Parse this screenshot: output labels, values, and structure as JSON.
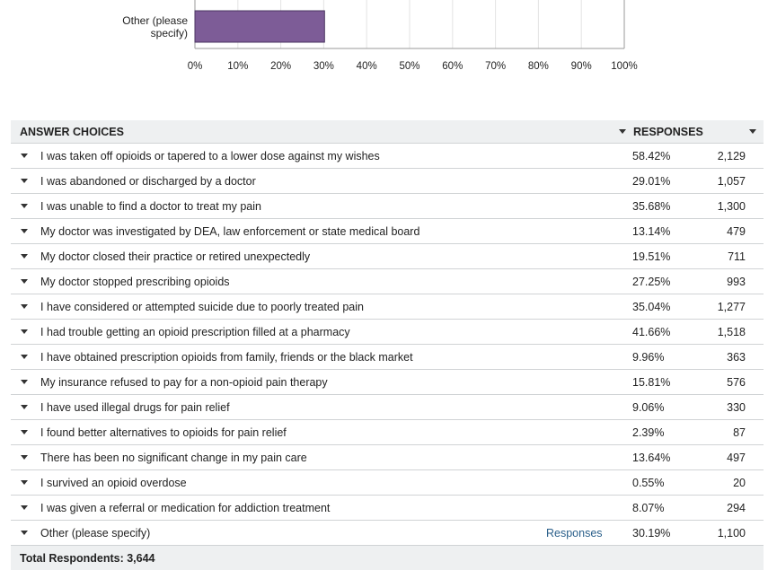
{
  "chart_data": {
    "type": "bar",
    "orientation": "horizontal",
    "categories": [
      "Other (please specify)"
    ],
    "values": [
      30.19
    ],
    "xlim": [
      0,
      100
    ],
    "ticks": [
      "0%",
      "10%",
      "20%",
      "30%",
      "40%",
      "50%",
      "60%",
      "70%",
      "80%",
      "90%",
      "100%"
    ],
    "grid": true,
    "bar_color": "#7d5c97"
  },
  "table": {
    "header": {
      "answer": "ANSWER CHOICES",
      "responses": "RESPONSES"
    },
    "rows": [
      {
        "label": "I was taken off opioids or tapered to a lower dose against my wishes",
        "pct": "58.42%",
        "count": "2,129"
      },
      {
        "label": "I was abandoned or discharged by a doctor",
        "pct": "29.01%",
        "count": "1,057"
      },
      {
        "label": "I was unable to find a doctor to treat my pain",
        "pct": "35.68%",
        "count": "1,300"
      },
      {
        "label": "My doctor was investigated by DEA, law enforcement or state medical board",
        "pct": "13.14%",
        "count": "479"
      },
      {
        "label": "My doctor closed their practice or retired unexpectedly",
        "pct": "19.51%",
        "count": "711"
      },
      {
        "label": "My doctor stopped prescribing opioids",
        "pct": "27.25%",
        "count": "993"
      },
      {
        "label": "I have considered or attempted suicide due to poorly treated pain",
        "pct": "35.04%",
        "count": "1,277"
      },
      {
        "label": "I had trouble getting an opioid prescription filled at a pharmacy",
        "pct": "41.66%",
        "count": "1,518"
      },
      {
        "label": "I have obtained prescription opioids from family, friends or the black market",
        "pct": "9.96%",
        "count": "363"
      },
      {
        "label": "My insurance refused to pay for a non-opioid pain therapy",
        "pct": "15.81%",
        "count": "576"
      },
      {
        "label": "I have used illegal drugs for pain relief",
        "pct": "9.06%",
        "count": "330"
      },
      {
        "label": "I found better alternatives to opioids for pain relief",
        "pct": "2.39%",
        "count": "87"
      },
      {
        "label": "There has been no significant change in my pain care",
        "pct": "13.64%",
        "count": "497"
      },
      {
        "label": "I survived an opioid overdose",
        "pct": "0.55%",
        "count": "20"
      },
      {
        "label": "I was given a referral or medication for addiction treatment",
        "pct": "8.07%",
        "count": "294"
      },
      {
        "label": "Other (please specify)",
        "pct": "30.19%",
        "count": "1,100",
        "link": "Responses"
      }
    ],
    "total": "Total Respondents: 3,644"
  }
}
